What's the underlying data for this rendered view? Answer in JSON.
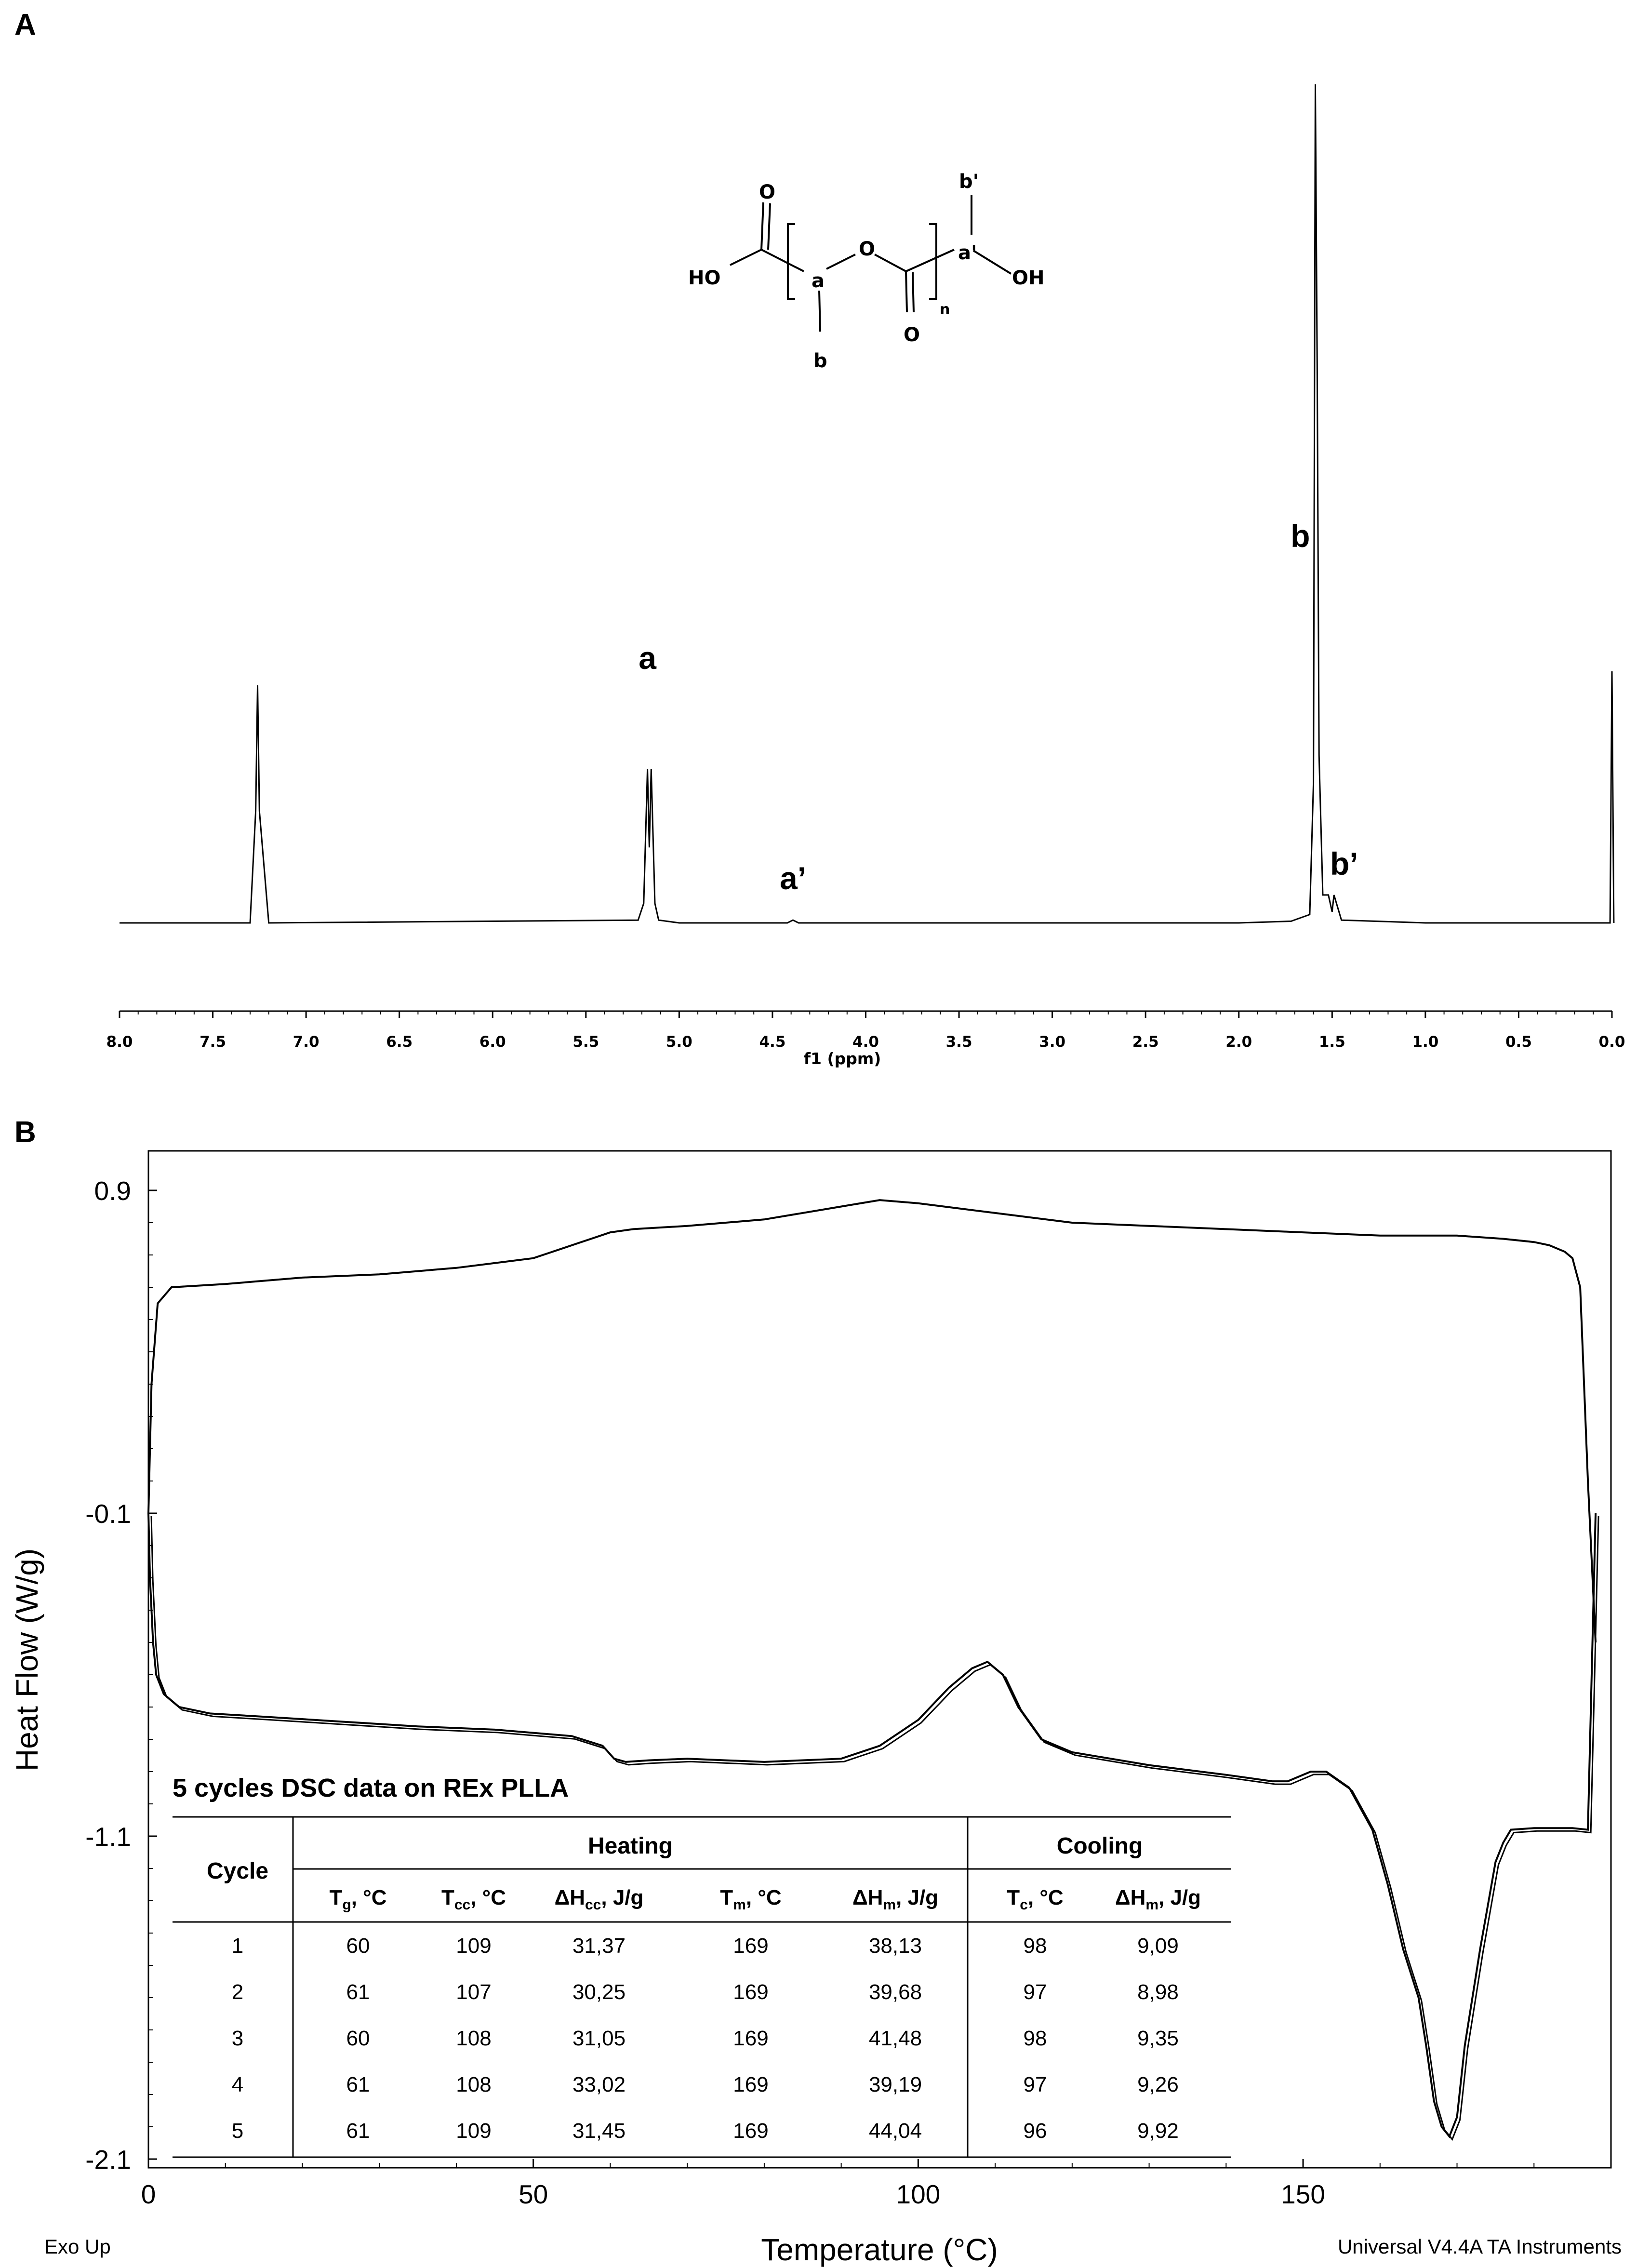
{
  "panel_a": {
    "letter": "A",
    "nmr": {
      "x_axis_label": "f1 (ppm)",
      "x_ticks": [
        "8.0",
        "7.5",
        "7.0",
        "6.5",
        "6.0",
        "5.5",
        "5.0",
        "4.5",
        "4.0",
        "3.5",
        "3.0",
        "2.5",
        "2.0",
        "1.5",
        "1.0",
        "0.5",
        "0.0"
      ],
      "peak_labels": [
        "a",
        "a’",
        "b",
        "b’"
      ]
    },
    "structure": {
      "labels": [
        "O",
        "HO",
        "a",
        "O",
        "a'",
        "b'",
        "OH",
        "b",
        "O",
        "n"
      ]
    }
  },
  "panel_b": {
    "letter": "B",
    "dsc": {
      "y_axis_label": "Heat Flow (W/g)",
      "x_axis_label": "Temperature (°C)",
      "y_ticks": [
        "0.9",
        "-0.1",
        "-1.1",
        "-2.1"
      ],
      "x_ticks": [
        "0",
        "50",
        "100",
        "150"
      ],
      "exo_label": "Exo Up",
      "software_label": "Universal V4.4A TA Instruments"
    },
    "table": {
      "title": "5 cycles DSC data on REx PLLA",
      "cycle_header": "Cycle",
      "heating_header": "Heating",
      "cooling_header": "Cooling",
      "subheaders": [
        {
          "main": "T",
          "sub": "g",
          "unit": ", °C"
        },
        {
          "main": "T",
          "sub": "cc",
          "unit": ", °C"
        },
        {
          "main": "ΔH",
          "sub": "cc",
          "unit": ", J/g"
        },
        {
          "main": "T",
          "sub": "m",
          "unit": ", °C"
        },
        {
          "main": "ΔH",
          "sub": "m",
          "unit": ", J/g"
        },
        {
          "main": "T",
          "sub": "c",
          "unit": ", °C"
        },
        {
          "main": "ΔH",
          "sub": "m",
          "unit": ", J/g"
        }
      ],
      "rows": [
        [
          "1",
          "60",
          "109",
          "31,37",
          "169",
          "38,13",
          "98",
          "9,09"
        ],
        [
          "2",
          "61",
          "107",
          "30,25",
          "169",
          "39,68",
          "97",
          "8,98"
        ],
        [
          "3",
          "60",
          "108",
          "31,05",
          "169",
          "41,48",
          "98",
          "9,35"
        ],
        [
          "4",
          "61",
          "108",
          "33,02",
          "169",
          "39,19",
          "97",
          "9,26"
        ],
        [
          "5",
          "61",
          "109",
          "31,45",
          "169",
          "44,04",
          "96",
          "9,92"
        ]
      ]
    }
  },
  "chart_data": [
    {
      "type": "line",
      "x_unit_label": "f1 (ppm)",
      "x_range": [
        8.0,
        0.0
      ],
      "x_reversed": true,
      "y_axis_shown": false,
      "series": [
        {
          "x": [
            8.0,
            7.3,
            7.27,
            7.26,
            7.25,
            7.2,
            5.22,
            5.19,
            5.17,
            5.16,
            5.15,
            5.13,
            5.11,
            5.0,
            4.42,
            4.39,
            4.36,
            2.0,
            1.72,
            1.62,
            1.6,
            1.59,
            1.58,
            1.57,
            1.55,
            1.52,
            1.5,
            1.49,
            1.45,
            1.0,
            0.01,
            0.0,
            -0.01
          ],
          "y": [
            0.0,
            0.0,
            0.4,
            0.85,
            0.4,
            0.0,
            0.01,
            0.07,
            0.55,
            0.27,
            0.55,
            0.07,
            0.01,
            0.0,
            0.0,
            0.01,
            0.0,
            0.0,
            0.006,
            0.03,
            0.5,
            3.0,
            2.0,
            0.6,
            0.1,
            0.1,
            0.04,
            0.1,
            0.01,
            0.0,
            0.0,
            0.9,
            0.0
          ]
        }
      ],
      "annotations": [
        {
          "text": "a",
          "x": 5.17
        },
        {
          "text": "a’",
          "x": 4.39
        },
        {
          "text": "b",
          "x": 1.58
        },
        {
          "text": "b’",
          "x": 1.5
        }
      ]
    },
    {
      "type": "line",
      "xlabel": "Temperature (°C)",
      "ylabel": "Heat Flow (W/g)",
      "xlim": [
        0,
        190
      ],
      "ylim": [
        -2.1,
        1.0
      ],
      "x_ticks": [
        0,
        50,
        100,
        150
      ],
      "y_ticks": [
        0.9,
        -0.1,
        -1.1,
        -2.1
      ],
      "series": [
        {
          "name": "",
          "x": [
            0.0,
            0.4,
            1.2,
            3.0,
            10.0,
            20.0,
            30.0,
            40.0,
            50.0,
            55.0,
            60.0,
            63.0,
            70.0,
            80.0,
            90.0,
            95.0,
            100.0,
            110.0,
            120.0,
            130.0,
            140.0,
            150.0,
            160.0,
            170.0,
            176.0,
            180.0,
            182.0,
            184.0,
            185.0,
            186.0,
            187.0,
            188.0
          ],
          "y": [
            -0.1,
            0.3,
            0.55,
            0.6,
            0.61,
            0.63,
            0.64,
            0.66,
            0.69,
            0.73,
            0.77,
            0.78,
            0.79,
            0.81,
            0.85,
            0.87,
            0.86,
            0.83,
            0.8,
            0.79,
            0.78,
            0.77,
            0.76,
            0.76,
            0.75,
            0.74,
            0.73,
            0.71,
            0.69,
            0.6,
            0.0,
            -0.5
          ]
        },
        {
          "name": "",
          "x": [
            0.0,
            0.2,
            0.6,
            1.0,
            2.0,
            4.0,
            8.0,
            15.0,
            25.0,
            35.0,
            45.0,
            50.0,
            55.0,
            59.0,
            60.5,
            62.0,
            65.0,
            70.0,
            80.0,
            90.0,
            95.0,
            100.0,
            104.0,
            107.0,
            109.0,
            111.0,
            113.0,
            116.0,
            120.0,
            130.0,
            140.0,
            146.0,
            148.0,
            151.0,
            153.0,
            156.0,
            159.0,
            161.0,
            163.0,
            165.0,
            166.0,
            167.0,
            168.0,
            169.0,
            170.0,
            171.0,
            173.0,
            175.0,
            176.0,
            177.0,
            180.0,
            185.0,
            187.0,
            188.0
          ],
          "y": [
            -0.1,
            -0.3,
            -0.5,
            -0.6,
            -0.66,
            -0.7,
            -0.72,
            -0.73,
            -0.745,
            -0.76,
            -0.77,
            -0.78,
            -0.79,
            -0.82,
            -0.86,
            -0.87,
            -0.865,
            -0.86,
            -0.87,
            -0.86,
            -0.82,
            -0.74,
            -0.64,
            -0.58,
            -0.56,
            -0.6,
            -0.7,
            -0.8,
            -0.84,
            -0.88,
            -0.91,
            -0.93,
            -0.93,
            -0.9,
            -0.9,
            -0.95,
            -1.08,
            -1.25,
            -1.45,
            -1.6,
            -1.75,
            -1.92,
            -2.0,
            -2.03,
            -1.97,
            -1.75,
            -1.45,
            -1.18,
            -1.12,
            -1.08,
            -1.075,
            -1.075,
            -1.08,
            -0.1
          ]
        }
      ]
    }
  ]
}
